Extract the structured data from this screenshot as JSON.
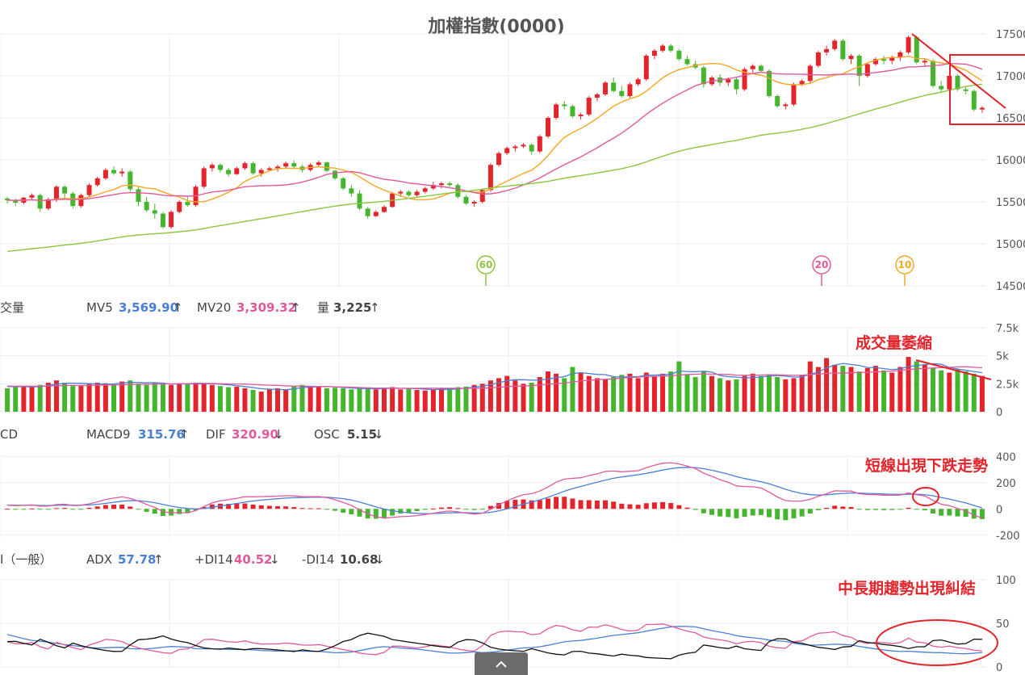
{
  "chart_data": {
    "type": "candlestick",
    "title": "加權指數(0000)",
    "price_axis": {
      "ticks": [
        17500,
        17000,
        16500,
        16000,
        15500,
        15000,
        14500
      ],
      "range": [
        14500,
        17500
      ]
    },
    "candles": [
      [
        15540,
        15560,
        15480,
        15520
      ],
      [
        15520,
        15540,
        15450,
        15490
      ],
      [
        15490,
        15560,
        15470,
        15550
      ],
      [
        15550,
        15600,
        15520,
        15580
      ],
      [
        15580,
        15600,
        15380,
        15420
      ],
      [
        15420,
        15550,
        15400,
        15530
      ],
      [
        15530,
        15700,
        15500,
        15680
      ],
      [
        15680,
        15700,
        15550,
        15600
      ],
      [
        15600,
        15620,
        15420,
        15450
      ],
      [
        15450,
        15600,
        15430,
        15580
      ],
      [
        15580,
        15720,
        15560,
        15700
      ],
      [
        15700,
        15800,
        15680,
        15780
      ],
      [
        15780,
        15900,
        15760,
        15880
      ],
      [
        15880,
        15920,
        15820,
        15840
      ],
      [
        15840,
        15900,
        15800,
        15860
      ],
      [
        15860,
        15880,
        15620,
        15650
      ],
      [
        15650,
        15680,
        15450,
        15500
      ],
      [
        15500,
        15560,
        15380,
        15400
      ],
      [
        15400,
        15480,
        15300,
        15360
      ],
      [
        15360,
        15380,
        15180,
        15200
      ],
      [
        15200,
        15400,
        15180,
        15380
      ],
      [
        15380,
        15520,
        15360,
        15500
      ],
      [
        15500,
        15560,
        15440,
        15460
      ],
      [
        15460,
        15700,
        15440,
        15680
      ],
      [
        15680,
        15920,
        15660,
        15900
      ],
      [
        15900,
        15960,
        15860,
        15940
      ],
      [
        15940,
        15960,
        15850,
        15880
      ],
      [
        15880,
        15900,
        15800,
        15830
      ],
      [
        15830,
        15920,
        15820,
        15900
      ],
      [
        15900,
        15980,
        15880,
        15960
      ],
      [
        15960,
        15980,
        15820,
        15840
      ],
      [
        15840,
        15900,
        15800,
        15880
      ],
      [
        15880,
        15920,
        15860,
        15900
      ],
      [
        15900,
        15940,
        15860,
        15920
      ],
      [
        15920,
        15980,
        15900,
        15960
      ],
      [
        15960,
        15990,
        15900,
        15920
      ],
      [
        15920,
        15940,
        15850,
        15880
      ],
      [
        15880,
        15960,
        15860,
        15940
      ],
      [
        15940,
        15990,
        15920,
        15970
      ],
      [
        15970,
        15980,
        15850,
        15870
      ],
      [
        15870,
        15880,
        15760,
        15780
      ],
      [
        15780,
        15800,
        15640,
        15660
      ],
      [
        15660,
        15700,
        15560,
        15600
      ],
      [
        15600,
        15640,
        15400,
        15420
      ],
      [
        15420,
        15440,
        15300,
        15330
      ],
      [
        15330,
        15400,
        15320,
        15380
      ],
      [
        15380,
        15460,
        15370,
        15440
      ],
      [
        15440,
        15620,
        15430,
        15600
      ],
      [
        15600,
        15640,
        15560,
        15620
      ],
      [
        15620,
        15640,
        15560,
        15580
      ],
      [
        15580,
        15640,
        15560,
        15620
      ],
      [
        15620,
        15680,
        15600,
        15660
      ],
      [
        15660,
        15740,
        15640,
        15700
      ],
      [
        15700,
        15740,
        15660,
        15720
      ],
      [
        15720,
        15740,
        15680,
        15700
      ],
      [
        15700,
        15720,
        15540,
        15560
      ],
      [
        15560,
        15580,
        15460,
        15480
      ],
      [
        15480,
        15520,
        15440,
        15500
      ],
      [
        15500,
        15660,
        15480,
        15640
      ],
      [
        15640,
        15960,
        15620,
        15940
      ],
      [
        15940,
        16100,
        15920,
        16080
      ],
      [
        16080,
        16160,
        16060,
        16140
      ],
      [
        16140,
        16180,
        16100,
        16160
      ],
      [
        16160,
        16200,
        16140,
        16180
      ],
      [
        16180,
        16200,
        16060,
        16100
      ],
      [
        16100,
        16300,
        16080,
        16280
      ],
      [
        16280,
        16520,
        16260,
        16500
      ],
      [
        16500,
        16680,
        16480,
        16660
      ],
      [
        16660,
        16700,
        16600,
        16640
      ],
      [
        16640,
        16660,
        16500,
        16520
      ],
      [
        16520,
        16560,
        16480,
        16540
      ],
      [
        16540,
        16760,
        16520,
        16740
      ],
      [
        16740,
        16800,
        16700,
        16780
      ],
      [
        16780,
        16940,
        16760,
        16920
      ],
      [
        16920,
        16980,
        16800,
        16820
      ],
      [
        16820,
        16880,
        16740,
        16760
      ],
      [
        16760,
        16920,
        16740,
        16900
      ],
      [
        16900,
        16980,
        16880,
        16960
      ],
      [
        16960,
        17260,
        16940,
        17240
      ],
      [
        17240,
        17320,
        17200,
        17300
      ],
      [
        17300,
        17380,
        17280,
        17360
      ],
      [
        17360,
        17380,
        17280,
        17300
      ],
      [
        17300,
        17320,
        17180,
        17200
      ],
      [
        17200,
        17240,
        17120,
        17140
      ],
      [
        17140,
        17180,
        17080,
        17100
      ],
      [
        17100,
        17120,
        16860,
        16900
      ],
      [
        16900,
        17000,
        16880,
        16980
      ],
      [
        16980,
        17020,
        16880,
        16920
      ],
      [
        16920,
        16980,
        16880,
        16960
      ],
      [
        16960,
        16980,
        16780,
        16840
      ],
      [
        16840,
        17100,
        16820,
        17080
      ],
      [
        17080,
        17140,
        17040,
        17120
      ],
      [
        17120,
        17140,
        17040,
        17060
      ],
      [
        17060,
        17080,
        16740,
        16760
      ],
      [
        16760,
        16780,
        16620,
        16640
      ],
      [
        16640,
        16680,
        16600,
        16660
      ],
      [
        16660,
        16920,
        16640,
        16900
      ],
      [
        16900,
        16960,
        16880,
        16940
      ],
      [
        16940,
        17140,
        16920,
        17120
      ],
      [
        17120,
        17300,
        17100,
        17280
      ],
      [
        17280,
        17360,
        17240,
        17320
      ],
      [
        17320,
        17440,
        17300,
        17420
      ],
      [
        17420,
        17440,
        17180,
        17200
      ],
      [
        17200,
        17260,
        17140,
        17240
      ],
      [
        17240,
        17260,
        16880,
        17000
      ],
      [
        17000,
        17160,
        16980,
        17140
      ],
      [
        17140,
        17220,
        17120,
        17200
      ],
      [
        17200,
        17240,
        17140,
        17180
      ],
      [
        17180,
        17240,
        17140,
        17220
      ],
      [
        17220,
        17300,
        17180,
        17280
      ],
      [
        17280,
        17480,
        17260,
        17460
      ],
      [
        17460,
        17480,
        17140,
        17160
      ],
      [
        17160,
        17200,
        17120,
        17180
      ],
      [
        17180,
        17200,
        16860,
        16880
      ],
      [
        16880,
        16940,
        16800,
        16840
      ],
      [
        16840,
        17020,
        16820,
        17000
      ],
      [
        17000,
        17020,
        16820,
        16840
      ],
      [
        16840,
        16880,
        16780,
        16820
      ],
      [
        16820,
        16840,
        16580,
        16600
      ],
      [
        16600,
        16640,
        16560,
        16620
      ]
    ],
    "ma_lines": [
      {
        "name": "MA10",
        "color": "#f5a623"
      },
      {
        "name": "MA20",
        "color": "#e05a9b"
      },
      {
        "name": "MA60",
        "color": "#8cc63f"
      }
    ],
    "markers": [
      {
        "label": "60",
        "color": "#8cc63f"
      },
      {
        "label": "20",
        "color": "#e05a9b"
      },
      {
        "label": "10",
        "color": "#f5a623"
      }
    ],
    "volume": {
      "header_label": "交量",
      "mv5_label": "MV5",
      "mv5_value": "3,569.90",
      "mv5_arrow": "↑",
      "mv20_label": "MV20",
      "mv20_value": "3,309.32",
      "mv20_arrow": "↑",
      "vol_label": "量",
      "vol_value": "3,225",
      "vol_arrow": "↑",
      "ticks": [
        "7.5k",
        "5k",
        "2.5k",
        "0"
      ],
      "range": [
        0,
        7500
      ],
      "values": [
        2100,
        2200,
        2300,
        2250,
        2400,
        2600,
        2800,
        2600,
        2400,
        2300,
        2500,
        2600,
        2550,
        2500,
        2700,
        2800,
        2500,
        2400,
        2600,
        2500,
        2400,
        2500,
        2450,
        2600,
        2550,
        2400,
        2300,
        2200,
        2250,
        2100,
        1950,
        1800,
        2000,
        2100,
        2000,
        2300,
        2400,
        2200,
        2300,
        2100,
        2150,
        2100,
        2000,
        2050,
        2100,
        2000,
        2150,
        2200,
        2000,
        2050,
        1950,
        1900,
        2000,
        2100,
        2050,
        2200,
        2250,
        2400,
        2500,
        2800,
        3000,
        3200,
        2800,
        2500,
        2600,
        3100,
        3600,
        3400,
        3000,
        4000,
        3500,
        3200,
        3000,
        2900,
        3100,
        3300,
        3400,
        3000,
        3500,
        3200,
        3400,
        3600,
        4500,
        3300,
        3100,
        3600,
        3200,
        3000,
        2800,
        2900,
        3200,
        3400,
        3200,
        3300,
        3100,
        2900,
        3000,
        3300,
        4500,
        4000,
        4800,
        4200,
        4100,
        4000,
        3600,
        3900,
        4100,
        3700,
        3500,
        4000,
        4900,
        4500,
        4200,
        3900,
        3700,
        3500,
        3800,
        3600,
        3400,
        3200
      ]
    },
    "macd": {
      "header_label": "CD",
      "macd9_label": "MACD9",
      "macd9_value": "315.76",
      "macd9_arrow": "↑",
      "dif_label": "DIF",
      "dif_value": "320.90",
      "dif_arrow": "↓",
      "osc_label": "OSC",
      "osc_value": "5.15",
      "osc_arrow": "↓",
      "ticks": [
        "400",
        "200",
        "0",
        "-200"
      ],
      "range": [
        -220,
        420
      ]
    },
    "dmi": {
      "header_label": "I（一般）",
      "adx_label": "ADX",
      "adx_value": "57.78",
      "adx_arrow": "↑",
      "pdi_label": "+DI14",
      "pdi_value": "40.52",
      "pdi_arrow": "↓",
      "mdi_label": "-DI14",
      "mdi_value": "10.68",
      "mdi_arrow": "↓",
      "ticks": [
        "100",
        "50",
        "0"
      ],
      "range": [
        0,
        100
      ]
    },
    "annotations": {
      "volume": "成交量萎縮",
      "macd": "短線出現下跌走勢",
      "dmi": "中長期趨勢出現糾結"
    },
    "colors": {
      "up": "#e3242b",
      "down": "#46b52e",
      "mv5": "#4a7fd6",
      "mv20": "#e05a9b",
      "adx": "#4a7fd6",
      "pdi": "#e05a9b",
      "mdi": "#111111",
      "annotation": "#e3242b"
    }
  },
  "ui": {
    "collapse_icon": "chevron-up-icon"
  }
}
